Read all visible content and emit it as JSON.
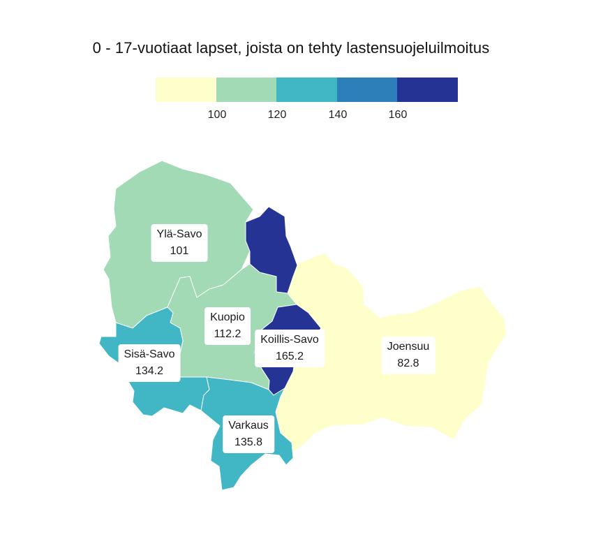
{
  "title": "0 - 17-vuotiaat lapset, joista on tehty lastensuojeluilmoitus",
  "legend": {
    "colors": [
      "#ffffcc",
      "#a1dab4",
      "#41b6c4",
      "#2c7fb8",
      "#253494"
    ],
    "breaks": [
      "100",
      "120",
      "140",
      "160"
    ]
  },
  "regions": [
    {
      "id": "yla-savo",
      "name": "Ylä-Savo",
      "value": "101",
      "color": "#a1dab4"
    },
    {
      "id": "kuopio",
      "name": "Kuopio",
      "value": "112.2",
      "color": "#a1dab4"
    },
    {
      "id": "koillis-savo",
      "name": "Koillis-Savo",
      "value": "165.2",
      "color": "#253494"
    },
    {
      "id": "sisa-savo",
      "name": "Sisä-Savo",
      "value": "134.2",
      "color": "#41b6c4"
    },
    {
      "id": "varkaus",
      "name": "Varkaus",
      "value": "135.8",
      "color": "#41b6c4"
    },
    {
      "id": "joensuu",
      "name": "Joensuu",
      "value": "82.8",
      "color": "#ffffcc"
    }
  ]
}
